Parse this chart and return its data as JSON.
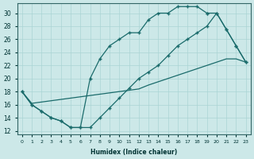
{
  "bg_color": "#cce8e8",
  "line_color": "#1a6b6b",
  "grid_color": "#aad4d4",
  "xlabel": "Humidex (Indice chaleur)",
  "xlim": [
    -0.5,
    23.5
  ],
  "ylim": [
    11.5,
    31.5
  ],
  "xticks": [
    0,
    1,
    2,
    3,
    4,
    5,
    6,
    7,
    8,
    9,
    10,
    11,
    12,
    13,
    14,
    15,
    16,
    17,
    18,
    19,
    20,
    21,
    22,
    23
  ],
  "yticks": [
    12,
    14,
    16,
    18,
    20,
    22,
    24,
    26,
    28,
    30
  ],
  "curve1_x": [
    0,
    1,
    2,
    3,
    4,
    5,
    6,
    7,
    8,
    9,
    10,
    11,
    12,
    13,
    14,
    15,
    16,
    17,
    18,
    19
  ],
  "curve1_y": [
    18,
    16,
    15,
    14,
    13.5,
    12.5,
    12.5,
    20,
    23,
    25,
    26,
    27,
    27,
    29,
    30,
    30,
    31,
    31,
    31,
    30
  ],
  "curve2_x": [
    0,
    1,
    2,
    3,
    4,
    5,
    6,
    7,
    8,
    9,
    10,
    11,
    12,
    13,
    14,
    15,
    16,
    17,
    18,
    19,
    20,
    21,
    22,
    23
  ],
  "curve2_y": [
    18,
    16,
    15,
    14,
    13.5,
    12.5,
    12.5,
    12.5,
    14,
    15.5,
    17,
    18.5,
    20,
    21,
    22,
    23.5,
    25,
    26,
    27,
    28,
    30,
    27.5,
    25,
    22.5
  ],
  "curve3_x": [
    0,
    1,
    2,
    3,
    4,
    5,
    6,
    7,
    8,
    9,
    10,
    11,
    12,
    13,
    14,
    15,
    16,
    17,
    18,
    19,
    20,
    21,
    22,
    23
  ],
  "curve3_y": [
    18,
    16.2,
    16.4,
    16.6,
    16.8,
    17.0,
    17.2,
    17.4,
    17.6,
    17.8,
    18.0,
    18.2,
    18.4,
    19.0,
    19.5,
    20.0,
    20.5,
    21.0,
    21.5,
    22.0,
    22.5,
    23.0,
    23.0,
    22.5
  ],
  "curve4_x": [
    19,
    20,
    21,
    22,
    23
  ],
  "curve4_y": [
    30,
    30,
    27.5,
    25,
    22.5
  ]
}
